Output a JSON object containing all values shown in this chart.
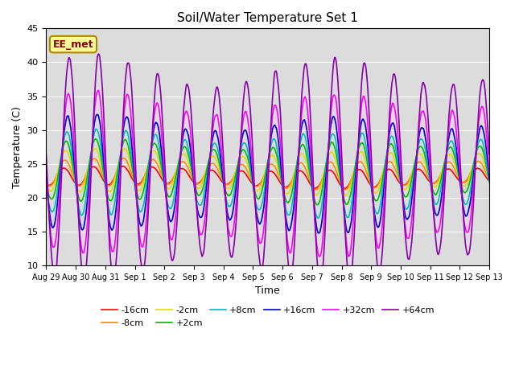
{
  "title": "Soil/Water Temperature Set 1",
  "xlabel": "Time",
  "ylabel": "Temperature (C)",
  "ylim": [
    10,
    45
  ],
  "xtick_labels": [
    "Aug 29",
    "Aug 30",
    "Aug 31",
    "Sep 1",
    "Sep 2",
    "Sep 3",
    "Sep 4",
    "Sep 5",
    "Sep 6",
    "Sep 7",
    "Sep 8",
    "Sep 9",
    "Sep 10",
    "Sep 11",
    "Sep 12",
    "Sep 13"
  ],
  "annotation_text": "EE_met",
  "annotation_color": "#8B0000",
  "annotation_bg": "#FFFF99",
  "annotation_border": "#AA8800",
  "bg_color": "#DCDCDC",
  "grid_color": "#FFFFFF",
  "series": [
    {
      "label": "-16cm",
      "color": "#FF0000",
      "amplitude": 1.2,
      "base": 23.0,
      "phase_shift": 0.0,
      "lw": 1.2
    },
    {
      "label": "-8cm",
      "color": "#FF8C00",
      "amplitude": 1.8,
      "base": 23.5,
      "phase_shift": 0.05,
      "lw": 1.2
    },
    {
      "label": "-2cm",
      "color": "#DDDD00",
      "amplitude": 2.8,
      "base": 23.8,
      "phase_shift": 0.1,
      "lw": 1.2
    },
    {
      "label": "+2cm",
      "color": "#00BB00",
      "amplitude": 4.0,
      "base": 23.8,
      "phase_shift": 0.15,
      "lw": 1.2
    },
    {
      "label": "+8cm",
      "color": "#00BBBB",
      "amplitude": 5.5,
      "base": 23.5,
      "phase_shift": 0.2,
      "lw": 1.2
    },
    {
      "label": "+16cm",
      "color": "#0000CC",
      "amplitude": 7.5,
      "base": 23.5,
      "phase_shift": 0.25,
      "lw": 1.2
    },
    {
      "label": "+32cm",
      "color": "#FF00FF",
      "amplitude": 10.5,
      "base": 23.5,
      "phase_shift": 0.3,
      "lw": 1.2
    },
    {
      "label": "+64cm",
      "color": "#8800AA",
      "amplitude": 14.5,
      "base": 24.0,
      "phase_shift": 0.35,
      "lw": 1.2
    }
  ]
}
